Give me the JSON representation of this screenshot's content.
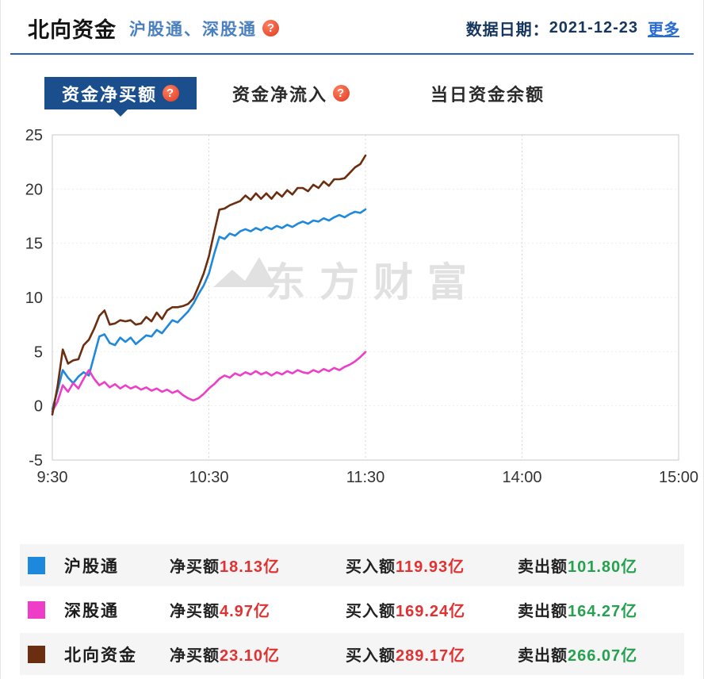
{
  "header": {
    "title": "北向资金",
    "subtitle": "沪股通、深股通",
    "date_label": "数据日期：",
    "date_value": "2021-12-23",
    "more_link": "更多"
  },
  "tabs": [
    {
      "label": "资金净买额",
      "active": true
    },
    {
      "label": "资金净流入",
      "active": false
    },
    {
      "label": "当日资金余额",
      "active": false
    }
  ],
  "icons": {
    "help": "?"
  },
  "colors": {
    "accent_blue": "#2a60b0",
    "tab_active_bg": "#1b4e8c",
    "link_blue": "#2a6cd5",
    "up_red": "#e03232",
    "down_green": "#26a14f",
    "hu_blue": "#1e88dd",
    "shen_pink": "#ee3ec8",
    "north_brown": "#6b2e10"
  },
  "chart_data": {
    "type": "line",
    "watermark": "东方财富",
    "ylim": [
      -5,
      25
    ],
    "xlim_minutes": [
      0,
      240
    ],
    "y_ticks": [
      25,
      20,
      15,
      10,
      5,
      0,
      -5
    ],
    "x_ticks": [
      {
        "minute": 0,
        "label": "9:30"
      },
      {
        "minute": 60,
        "label": "10:30"
      },
      {
        "minute": 120,
        "label": "11:30"
      },
      {
        "minute": 180,
        "label": "14:00"
      },
      {
        "minute": 240,
        "label": "15:00"
      }
    ],
    "unit": "亿",
    "series": [
      {
        "name": "沪股通",
        "color": "#1e88dd",
        "x_start_minute": 0,
        "x_step_minutes": 2,
        "values": [
          -0.3,
          1.4,
          3.3,
          2.6,
          2.1,
          2.7,
          3.1,
          2.8,
          4.6,
          6.4,
          6.6,
          5.8,
          5.6,
          6.3,
          5.9,
          6.3,
          5.7,
          6.1,
          6.5,
          6.4,
          7.0,
          6.7,
          7.3,
          7.9,
          7.7,
          8.2,
          8.7,
          9.4,
          10.3,
          11.1,
          12.2,
          14.0,
          15.6,
          15.4,
          15.9,
          15.7,
          16.1,
          16.3,
          16.1,
          16.4,
          16.2,
          16.5,
          16.3,
          16.6,
          16.4,
          16.7,
          16.5,
          16.8,
          17.0,
          16.8,
          17.1,
          17.0,
          17.3,
          17.1,
          17.4,
          17.6,
          17.4,
          17.7,
          17.9,
          17.8,
          18.13
        ]
      },
      {
        "name": "深股通",
        "color": "#ee3ec8",
        "x_start_minute": 0,
        "x_step_minutes": 2,
        "values": [
          -0.5,
          0.4,
          1.9,
          1.3,
          2.1,
          1.6,
          2.5,
          3.3,
          2.5,
          1.9,
          2.2,
          1.7,
          2.0,
          1.6,
          1.9,
          1.6,
          1.8,
          1.5,
          1.7,
          1.4,
          1.6,
          1.3,
          1.5,
          1.2,
          1.4,
          1.0,
          0.7,
          0.5,
          0.7,
          1.1,
          1.6,
          2.0,
          2.5,
          2.8,
          2.6,
          3.0,
          2.8,
          3.1,
          2.9,
          3.2,
          2.9,
          3.1,
          2.8,
          3.1,
          2.9,
          3.2,
          3.0,
          3.3,
          3.1,
          3.0,
          3.3,
          3.1,
          3.4,
          3.2,
          3.5,
          3.3,
          3.6,
          3.8,
          4.1,
          4.5,
          4.97
        ]
      },
      {
        "name": "北向资金",
        "color": "#6b2e10",
        "x_start_minute": 0,
        "x_step_minutes": 2,
        "values": [
          -0.8,
          1.8,
          5.2,
          3.9,
          4.2,
          4.3,
          5.6,
          6.1,
          7.1,
          8.3,
          8.8,
          7.5,
          7.6,
          7.9,
          7.8,
          7.9,
          7.5,
          7.6,
          8.2,
          7.8,
          8.6,
          8.0,
          8.8,
          9.1,
          9.1,
          9.2,
          9.4,
          9.9,
          11.0,
          12.2,
          13.8,
          16.0,
          18.1,
          18.2,
          18.5,
          18.7,
          18.9,
          19.4,
          19.0,
          19.6,
          19.1,
          19.6,
          19.1,
          19.7,
          19.3,
          19.9,
          19.5,
          20.1,
          20.1,
          19.8,
          20.4,
          20.1,
          20.7,
          20.3,
          20.9,
          20.9,
          21.0,
          21.5,
          22.0,
          22.3,
          23.1
        ]
      }
    ]
  },
  "legend_rows": [
    {
      "name": "沪股通",
      "color": "#1e88dd",
      "net_label": "净买额",
      "net_value": "18.13亿",
      "buy_label": "买入额",
      "buy_value": "119.93亿",
      "sell_label": "卖出额",
      "sell_value": "101.80亿"
    },
    {
      "name": "深股通",
      "color": "#ee3ec8",
      "net_label": "净买额",
      "net_value": "4.97亿",
      "buy_label": "买入额",
      "buy_value": "169.24亿",
      "sell_label": "卖出额",
      "sell_value": "164.27亿"
    },
    {
      "name": "北向资金",
      "color": "#6b2e10",
      "net_label": "净买额",
      "net_value": "23.10亿",
      "buy_label": "买入额",
      "buy_value": "289.17亿",
      "sell_label": "卖出额",
      "sell_value": "266.07亿"
    }
  ]
}
